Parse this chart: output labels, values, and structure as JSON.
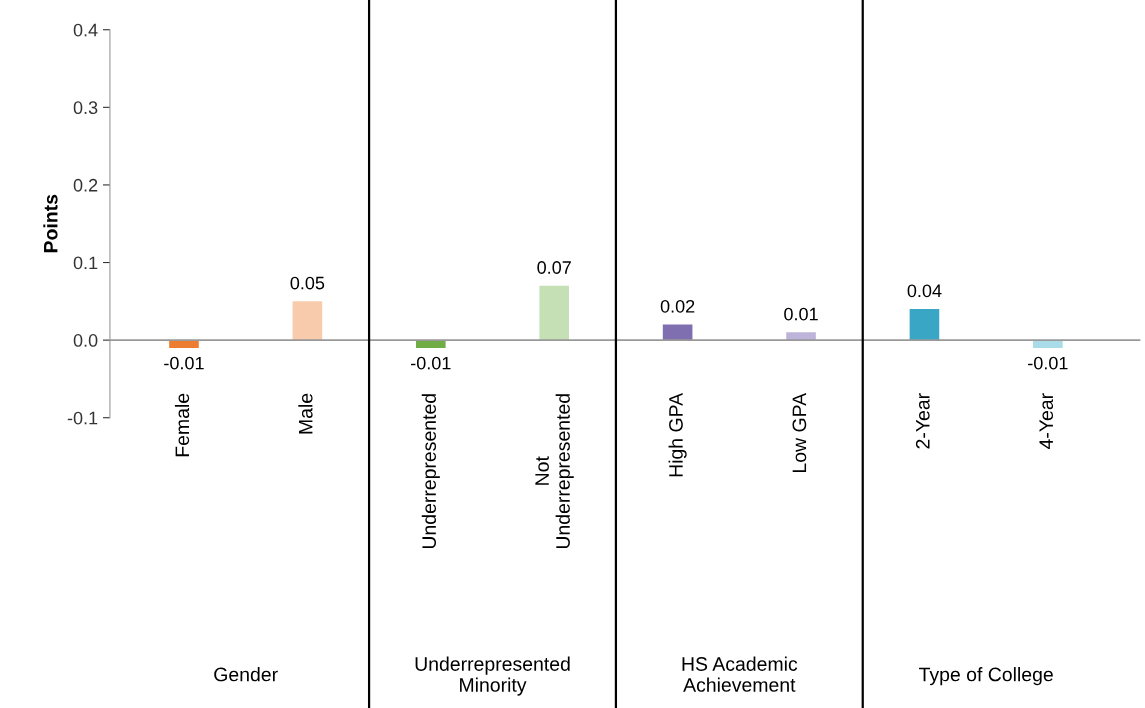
{
  "chart_data": {
    "type": "bar",
    "ylabel": "Points",
    "categories": [
      "Female",
      "Male",
      "Underrepresented",
      "Not\nUnderrepresented",
      "High GPA",
      "Low GPA",
      "2-Year",
      "4-Year"
    ],
    "values": [
      -0.01,
      0.05,
      -0.01,
      0.07,
      0.02,
      0.01,
      0.04,
      -0.01
    ],
    "colors": [
      "#ed7d31",
      "#f8cbad",
      "#70ad47",
      "#c5e0b4",
      "#7f6fb0",
      "#bcb4d9",
      "#3aa6c6",
      "#a9dbe8"
    ],
    "data_labels": true,
    "annotations": [
      "Gender",
      "Underrepresented\nMinority",
      "HS Academic\nAchievement",
      "Type of College"
    ],
    "ylim": [
      -0.1,
      0.4
    ],
    "yticks": [
      {
        "value": -0.1,
        "label": "-0.1"
      },
      {
        "value": 0,
        "label": "0.0"
      },
      {
        "value": 0.1,
        "label": "0.1"
      },
      {
        "value": 0.2,
        "label": "0.2"
      },
      {
        "value": 0.3,
        "label": "0.3"
      },
      {
        "value": 0.4,
        "label": "0.4"
      }
    ],
    "grid": false
  }
}
